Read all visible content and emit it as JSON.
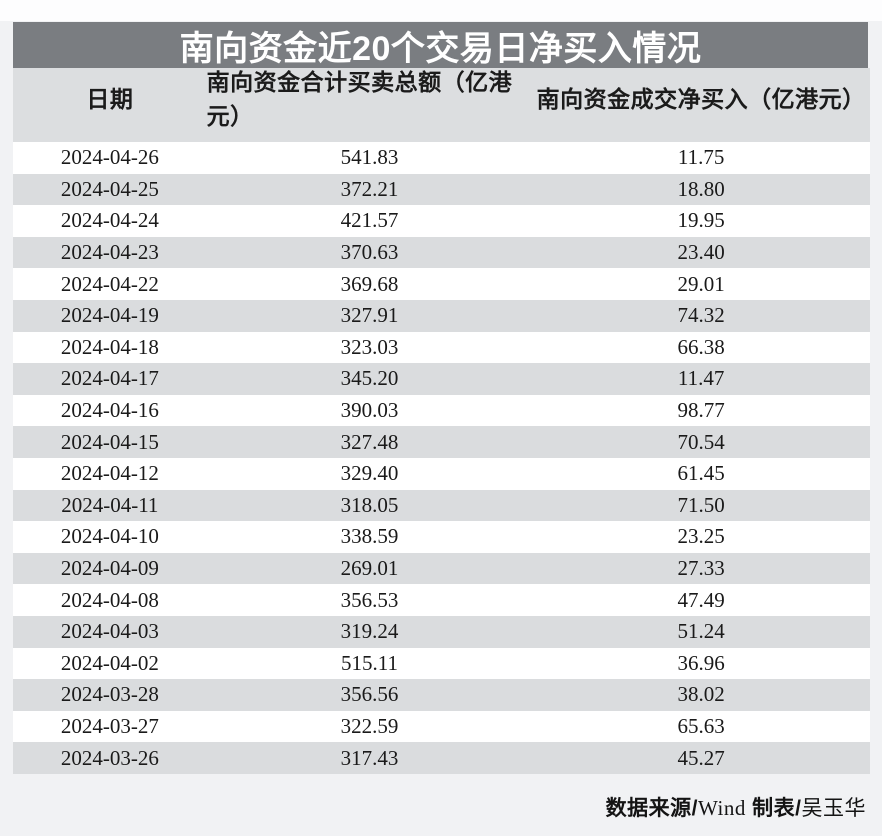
{
  "page": {
    "title": "南向资金近20个交易日净买入情况"
  },
  "chart_data": {
    "type": "table",
    "title": "南向资金近20个交易日净买入情况",
    "columns": [
      "日期",
      "南向资金合计买卖总额（亿港元）",
      "南向资金成交净买入（亿港元）"
    ],
    "rows": [
      [
        "2024-04-26",
        "541.83",
        "11.75"
      ],
      [
        "2024-04-25",
        "372.21",
        "18.80"
      ],
      [
        "2024-04-24",
        "421.57",
        "19.95"
      ],
      [
        "2024-04-23",
        "370.63",
        "23.40"
      ],
      [
        "2024-04-22",
        "369.68",
        "29.01"
      ],
      [
        "2024-04-19",
        "327.91",
        "74.32"
      ],
      [
        "2024-04-18",
        "323.03",
        "66.38"
      ],
      [
        "2024-04-17",
        "345.20",
        "11.47"
      ],
      [
        "2024-04-16",
        "390.03",
        "98.77"
      ],
      [
        "2024-04-15",
        "327.48",
        "70.54"
      ],
      [
        "2024-04-12",
        "329.40",
        "61.45"
      ],
      [
        "2024-04-11",
        "318.05",
        "71.50"
      ],
      [
        "2024-04-10",
        "338.59",
        "23.25"
      ],
      [
        "2024-04-09",
        "269.01",
        "27.33"
      ],
      [
        "2024-04-08",
        "356.53",
        "47.49"
      ],
      [
        "2024-04-03",
        "319.24",
        "51.24"
      ],
      [
        "2024-04-02",
        "515.11",
        "36.96"
      ],
      [
        "2024-03-28",
        "356.56",
        "38.02"
      ],
      [
        "2024-03-27",
        "322.59",
        "65.63"
      ],
      [
        "2024-03-26",
        "317.43",
        "45.27"
      ]
    ],
    "footer": "数据来源/Wind 制表/吴玉华"
  },
  "footer": {
    "source_label": "数据来源/",
    "source_name": "Wind",
    "tabulation_label": " 制表/",
    "author": "吴玉华"
  },
  "colors": {
    "title_bar_bg": "#7a7d81",
    "title_text": "#ffffff",
    "header_bg": "#dcdee0",
    "row_alt_bg": "#dadcde",
    "row_bg": "#ffffff",
    "page_bg": "#f1f2f4",
    "text": "#1a1a1a"
  }
}
